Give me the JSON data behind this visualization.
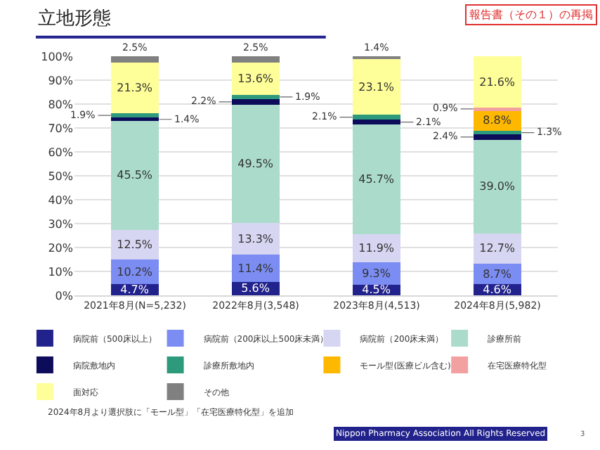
{
  "chart_data": {
    "type": "bar",
    "stacked": true,
    "title": "立地形態",
    "categories": [
      "2021年8月(N=5,232)",
      "2022年8月(3,548)",
      "2023年8月(4,513)",
      "2024年8月(5,982)"
    ],
    "series": [
      {
        "name": "病院前（500床以上）",
        "color": "#22228c",
        "values": [
          4.7,
          5.6,
          4.5,
          4.6
        ],
        "value_labels": [
          "4.7%",
          "5.6%",
          "4.5%",
          "4.6%"
        ]
      },
      {
        "name": "病院前（200床以上500床未満）",
        "color": "#7b8cf2",
        "values": [
          10.2,
          11.4,
          9.3,
          8.7
        ],
        "value_labels": [
          "10.2%",
          "11.4%",
          "9.3%",
          "8.7%"
        ]
      },
      {
        "name": "病院前（200床未満）",
        "color": "#d6d6f2",
        "values": [
          12.5,
          13.3,
          11.9,
          12.7
        ],
        "value_labels": [
          "12.5%",
          "13.3%",
          "11.9%",
          "12.7%"
        ]
      },
      {
        "name": "診療所前",
        "color": "#abdccb",
        "values": [
          45.5,
          49.5,
          45.7,
          39.0
        ],
        "value_labels": [
          "45.5%",
          "49.5%",
          "45.7%",
          "39.0%"
        ]
      },
      {
        "name": "病院敷地内",
        "color": "#0c0c5a",
        "values": [
          1.4,
          2.2,
          2.1,
          2.4
        ],
        "value_labels": [
          "1.4%",
          "2.2%",
          "2.1%",
          "2.4%"
        ]
      },
      {
        "name": "診療所敷地内",
        "color": "#2e9a7c",
        "values": [
          1.9,
          1.9,
          2.1,
          1.3
        ],
        "value_labels": [
          "1.9%",
          "1.9%",
          "2.1%",
          "1.3%"
        ]
      },
      {
        "name": "モール型(医療ビル含む)",
        "color": "#ffb800",
        "values": [
          null,
          null,
          null,
          8.8
        ],
        "value_labels": [
          null,
          null,
          null,
          "8.8%"
        ]
      },
      {
        "name": "在宅医療特化型",
        "color": "#f2a0a0",
        "values": [
          null,
          null,
          null,
          0.9
        ],
        "value_labels": [
          null,
          null,
          null,
          "0.9%"
        ]
      },
      {
        "name": "面対応",
        "color": "#ffff99",
        "values": [
          21.3,
          13.6,
          23.1,
          21.6
        ],
        "value_labels": [
          "21.3%",
          "13.6%",
          "23.1%",
          "21.6%"
        ]
      },
      {
        "name": "その他",
        "color": "#808080",
        "values": [
          2.5,
          2.5,
          1.4,
          null
        ],
        "value_labels": [
          "2.5%",
          "2.5%",
          "1.4%",
          null
        ]
      }
    ],
    "ylim": [
      0,
      100
    ],
    "yticks": [
      {
        "value": 0,
        "label": "0%"
      },
      {
        "value": 10,
        "label": "10%"
      },
      {
        "value": 20,
        "label": "20%"
      },
      {
        "value": 30,
        "label": "30%"
      },
      {
        "value": 40,
        "label": "40%"
      },
      {
        "value": 50,
        "label": "50%"
      },
      {
        "value": 60,
        "label": "60%"
      },
      {
        "value": 70,
        "label": "70%"
      },
      {
        "value": 80,
        "label": "80%"
      },
      {
        "value": 90,
        "label": "90%"
      },
      {
        "value": 100,
        "label": "100%"
      }
    ],
    "grid": "y",
    "legend": "bottom",
    "annotations": [
      "報告書（その１）の再掲",
      "2024年8月より選択肢に「モール型」「在宅医療特化型」を追加",
      "Nippon Pharmacy Association All Rights Reserved",
      "3"
    ]
  }
}
